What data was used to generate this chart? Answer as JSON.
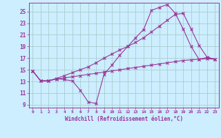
{
  "xlabel": "Windchill (Refroidissement éolien,°C)",
  "ylabel": "",
  "bg_color": "#cceeff",
  "grid_color": "#aacccc",
  "line_color": "#993399",
  "x_ticks": [
    0,
    1,
    2,
    3,
    4,
    5,
    6,
    7,
    8,
    9,
    10,
    11,
    12,
    13,
    14,
    15,
    16,
    17,
    18,
    19,
    20,
    21,
    22,
    23
  ],
  "y_ticks": [
    9,
    11,
    13,
    15,
    17,
    19,
    21,
    23,
    25
  ],
  "xlim": [
    -0.5,
    23.5
  ],
  "ylim": [
    8.5,
    26.5
  ],
  "line1_x": [
    0,
    1,
    2,
    3,
    4,
    5,
    6,
    7,
    8,
    9,
    10,
    11,
    12,
    13,
    14,
    15,
    16,
    17,
    18,
    19,
    20,
    21,
    22,
    23
  ],
  "line1_y": [
    14.8,
    13.1,
    13.1,
    13.5,
    13.3,
    13.1,
    11.5,
    9.5,
    9.2,
    14.2,
    15.8,
    17.5,
    19.0,
    20.5,
    21.9,
    25.2,
    25.7,
    26.2,
    24.7,
    22.0,
    19.0,
    16.8,
    17.1,
    16.8
  ],
  "line2_x": [
    0,
    1,
    2,
    3,
    4,
    5,
    6,
    7,
    8,
    9,
    10,
    11,
    12,
    13,
    14,
    15,
    16,
    17,
    18,
    19,
    20,
    21,
    22,
    23
  ],
  "line2_y": [
    14.8,
    13.1,
    13.1,
    13.5,
    14.0,
    14.5,
    15.0,
    15.5,
    16.2,
    17.0,
    17.7,
    18.4,
    19.0,
    19.7,
    20.5,
    21.5,
    22.5,
    23.5,
    24.5,
    24.7,
    22.0,
    19.2,
    17.2,
    16.8
  ],
  "line3_x": [
    0,
    1,
    2,
    3,
    4,
    5,
    6,
    7,
    8,
    9,
    10,
    11,
    12,
    13,
    14,
    15,
    16,
    17,
    18,
    19,
    20,
    21,
    22,
    23
  ],
  "line3_y": [
    14.8,
    13.1,
    13.1,
    13.4,
    13.6,
    13.8,
    14.0,
    14.2,
    14.4,
    14.6,
    14.8,
    15.0,
    15.2,
    15.4,
    15.6,
    15.8,
    16.0,
    16.2,
    16.4,
    16.6,
    16.7,
    16.8,
    16.9,
    16.8
  ]
}
